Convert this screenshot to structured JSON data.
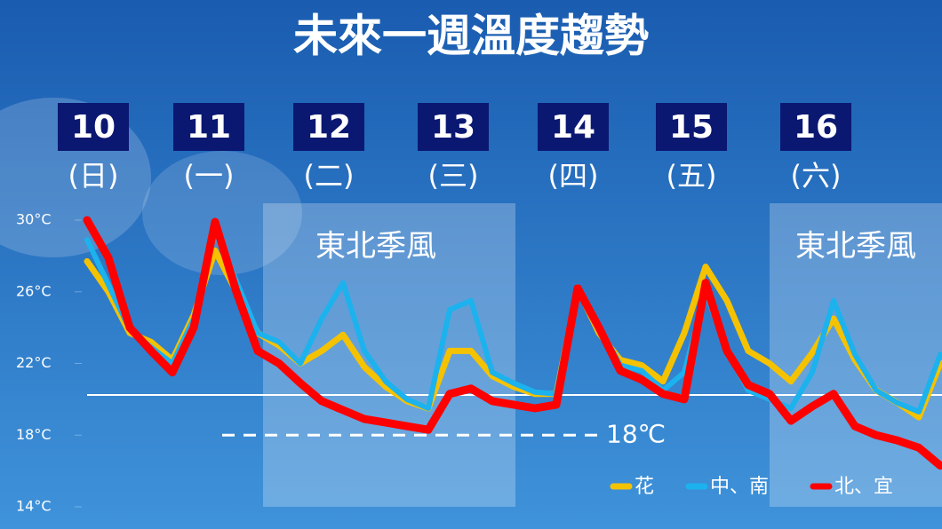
{
  "chart_data": {
    "type": "line",
    "title": "未來一週溫度趨勢",
    "days": [
      {
        "date": "10",
        "weekday": "(日)"
      },
      {
        "date": "11",
        "weekday": "(一)"
      },
      {
        "date": "12",
        "weekday": "(二)"
      },
      {
        "date": "13",
        "weekday": "(三)"
      },
      {
        "date": "14",
        "weekday": "(四)"
      },
      {
        "date": "15",
        "weekday": "(五)"
      },
      {
        "date": "16",
        "weekday": "(六)"
      }
    ],
    "shaded_regions": [
      "東北季風",
      "東北季風"
    ],
    "ylim": [
      14,
      30
    ],
    "yticks": [
      {
        "value": 14,
        "label": "14°C"
      },
      {
        "value": 18,
        "label": "18°C"
      },
      {
        "value": 22,
        "label": "22°C"
      },
      {
        "value": 26,
        "label": "26°C"
      },
      {
        "value": 30,
        "label": "30°C"
      }
    ],
    "annotation": {
      "value": 18,
      "label": "18℃"
    },
    "categories": [
      null,
      null,
      null,
      null,
      null,
      null,
      null,
      null,
      null,
      null,
      null,
      null,
      null,
      null,
      null,
      null,
      null,
      null,
      null,
      null,
      null,
      null,
      null,
      null,
      null,
      null,
      null,
      null,
      null,
      null,
      null,
      null,
      null,
      null,
      null,
      null,
      null,
      null,
      null,
      null,
      null
    ],
    "series": [
      {
        "name": "花",
        "color": "#f5c200",
        "values": [
          27.7,
          26.0,
          23.7,
          23.2,
          22.2,
          24.7,
          28.3,
          26.0,
          23.7,
          23.0,
          22.0,
          22.7,
          23.6,
          21.8,
          20.7,
          19.9,
          19.5,
          22.7,
          22.7,
          21.3,
          20.7,
          20.3,
          20.3,
          26.2,
          23.7,
          22.2,
          21.9,
          21.0,
          23.7,
          27.4,
          25.5,
          22.7,
          22.0,
          21.0,
          22.6,
          24.5,
          22.2,
          20.5,
          19.8,
          19.0,
          22.0
        ]
      },
      {
        "name": "中、南",
        "color": "#1cb2ee",
        "values": [
          28.9,
          26.4,
          23.9,
          22.9,
          22.0,
          24.5,
          29.3,
          26.6,
          23.7,
          23.2,
          22.0,
          24.5,
          26.5,
          22.7,
          21.0,
          20.0,
          19.5,
          25.0,
          25.5,
          21.5,
          20.9,
          20.4,
          20.3,
          26.3,
          24.1,
          21.9,
          21.6,
          20.5,
          21.5,
          26.0,
          22.7,
          20.5,
          20.0,
          19.5,
          21.5,
          25.5,
          22.5,
          20.5,
          19.8,
          19.3,
          22.5
        ]
      },
      {
        "name": "北、宜",
        "color": "#ff0000",
        "values": [
          30.0,
          27.9,
          24.0,
          22.7,
          21.5,
          24.0,
          29.9,
          26.0,
          22.7,
          22.0,
          20.9,
          19.9,
          19.4,
          18.9,
          18.7,
          18.5,
          18.3,
          20.3,
          20.6,
          19.9,
          19.7,
          19.5,
          19.7,
          26.2,
          24.0,
          21.6,
          21.1,
          20.3,
          20.0,
          26.5,
          22.7,
          20.8,
          20.3,
          18.8,
          19.6,
          20.3,
          18.5,
          18.0,
          17.7,
          17.3,
          16.3
        ]
      }
    ]
  }
}
